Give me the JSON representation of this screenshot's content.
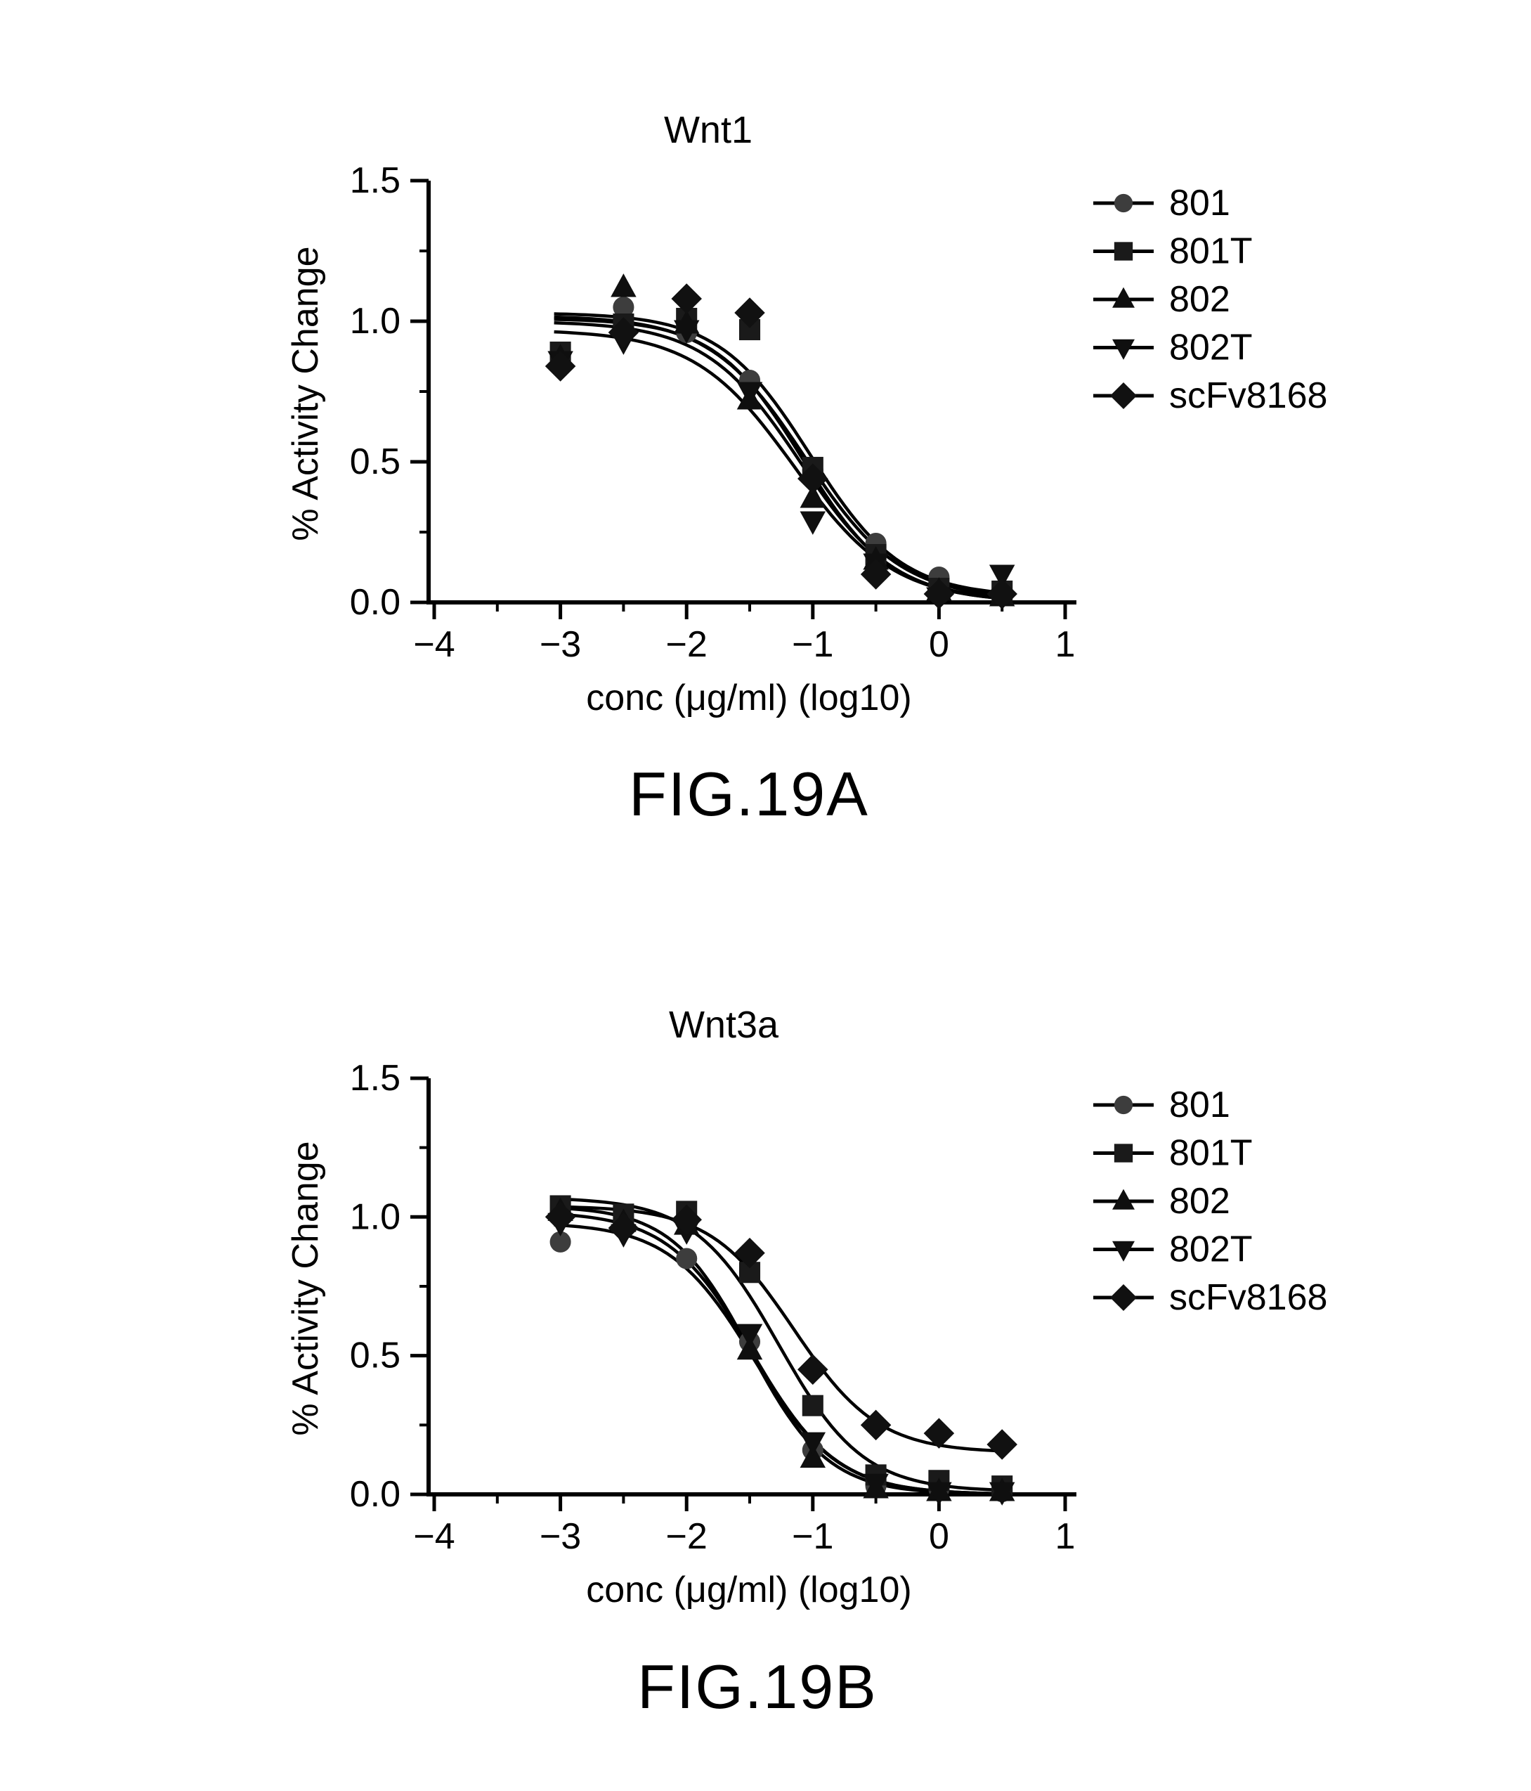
{
  "figure": {
    "background": "#ffffff",
    "ink_color": "#000000"
  },
  "chart_data": [
    {
      "type": "scatter",
      "title": "Wnt1",
      "xlabel": "conc (μg/ml) (log10)",
      "ylabel": "% Activity Change",
      "figure_label": "FIG.19A",
      "xlim": [
        -4,
        1
      ],
      "ylim": [
        0.0,
        1.5
      ],
      "grid": false,
      "legend_position": "right",
      "x_tick_values": [
        -4,
        -3,
        -2,
        -1,
        0,
        1
      ],
      "x_tick_labels": [
        "−4",
        "−3",
        "−2",
        "−1",
        "0",
        "1"
      ],
      "x_minor_ticks": [
        -3.5,
        -2.5,
        -1.5,
        -0.5,
        0.5
      ],
      "y_tick_values": [
        0.0,
        0.5,
        1.0,
        1.5
      ],
      "y_tick_labels": [
        "0.0",
        "0.5",
        "1.0",
        "1.5"
      ],
      "y_minor_ticks": [
        0.25,
        0.75,
        1.25
      ],
      "x": [
        -3,
        -2.5,
        -2,
        -1.5,
        -1,
        -0.5,
        0,
        0.5
      ],
      "curve_x_range": [
        -3.05,
        0.55
      ],
      "series": [
        {
          "name": "801",
          "marker": "circle",
          "marker_fill": "#3d3d3d",
          "values": [
            0.88,
            1.05,
            0.96,
            0.79,
            0.47,
            0.21,
            0.09,
            0.03
          ],
          "fit": {
            "top": 1.02,
            "bottom": 0.01,
            "logIC50": -1.06,
            "hill": 1.15
          }
        },
        {
          "name": "801T",
          "marker": "square",
          "marker_fill": "#1a1a1a",
          "values": [
            0.89,
            0.99,
            1.01,
            0.97,
            0.48,
            0.17,
            0.05,
            0.04
          ],
          "fit": {
            "top": 1.03,
            "bottom": 0.02,
            "logIC50": -1.02,
            "hill": 1.2
          }
        },
        {
          "name": "802",
          "marker": "triangle-up",
          "marker_fill": "#0f0f0f",
          "values": [
            0.87,
            1.12,
            0.99,
            0.72,
            0.37,
            0.15,
            0.04,
            0.02
          ],
          "fit": {
            "top": 1.0,
            "bottom": 0.0,
            "logIC50": -1.1,
            "hill": 1.15
          }
        },
        {
          "name": "802T",
          "marker": "triangle-down",
          "marker_fill": "#0f0f0f",
          "values": [
            0.86,
            0.93,
            0.97,
            0.75,
            0.29,
            0.14,
            0.02,
            0.1
          ],
          "fit": {
            "top": 0.97,
            "bottom": 0.0,
            "logIC50": -1.15,
            "hill": 1.1
          }
        },
        {
          "name": "scFv8168",
          "marker": "diamond",
          "marker_fill": "#111111",
          "values": [
            0.84,
            0.96,
            1.08,
            1.03,
            0.44,
            0.1,
            0.03,
            0.03
          ],
          "fit": {
            "top": 1.01,
            "bottom": 0.01,
            "logIC50": -1.08,
            "hill": 1.25
          }
        }
      ]
    },
    {
      "type": "scatter",
      "title": "Wnt3a",
      "xlabel": "conc (μg/ml) (log10)",
      "ylabel": "% Activity Change",
      "figure_label": "FIG.19B",
      "xlim": [
        -4,
        1
      ],
      "ylim": [
        0.0,
        1.5
      ],
      "grid": false,
      "legend_position": "right",
      "x_tick_values": [
        -4,
        -3,
        -2,
        -1,
        0,
        1
      ],
      "x_tick_labels": [
        "−4",
        "−3",
        "−2",
        "−1",
        "0",
        "1"
      ],
      "x_minor_ticks": [
        -3.5,
        -2.5,
        -1.5,
        -0.5,
        0.5
      ],
      "y_tick_values": [
        0.0,
        0.5,
        1.0,
        1.5
      ],
      "y_tick_labels": [
        "0.0",
        "0.5",
        "1.0",
        "1.5"
      ],
      "y_minor_ticks": [
        0.25,
        0.75,
        1.25
      ],
      "x": [
        -3,
        -2.5,
        -2,
        -1.5,
        -1,
        -0.5,
        0,
        0.5
      ],
      "curve_x_range": [
        -3.05,
        0.55
      ],
      "series": [
        {
          "name": "801",
          "marker": "circle",
          "marker_fill": "#3d3d3d",
          "values": [
            0.91,
            0.98,
            0.85,
            0.55,
            0.16,
            0.03,
            0.02,
            0.01
          ],
          "fit": {
            "top": 0.98,
            "bottom": 0.0,
            "logIC50": -1.47,
            "hill": 1.3
          }
        },
        {
          "name": "801T",
          "marker": "square",
          "marker_fill": "#1a1a1a",
          "values": [
            1.04,
            1.01,
            1.02,
            0.8,
            0.32,
            0.07,
            0.05,
            0.03
          ],
          "fit": {
            "top": 1.07,
            "bottom": 0.01,
            "logIC50": -1.27,
            "hill": 1.3
          }
        },
        {
          "name": "802",
          "marker": "triangle-up",
          "marker_fill": "#0f0f0f",
          "values": [
            1.02,
            0.98,
            0.97,
            0.52,
            0.13,
            0.02,
            0.01,
            0.01
          ],
          "fit": {
            "top": 1.04,
            "bottom": 0.0,
            "logIC50": -1.5,
            "hill": 1.4
          }
        },
        {
          "name": "802T",
          "marker": "triangle-down",
          "marker_fill": "#0f0f0f",
          "values": [
            0.98,
            0.94,
            0.95,
            0.58,
            0.19,
            0.04,
            0.01,
            0.01
          ],
          "fit": {
            "top": 1.02,
            "bottom": 0.0,
            "logIC50": -1.48,
            "hill": 1.3
          }
        },
        {
          "name": "scFv8168",
          "marker": "diamond",
          "marker_fill": "#111111",
          "values": [
            1.0,
            0.96,
            0.99,
            0.87,
            0.45,
            0.25,
            0.22,
            0.18
          ],
          "fit": {
            "top": 1.04,
            "bottom": 0.15,
            "logIC50": -1.15,
            "hill": 1.3
          }
        }
      ]
    }
  ]
}
